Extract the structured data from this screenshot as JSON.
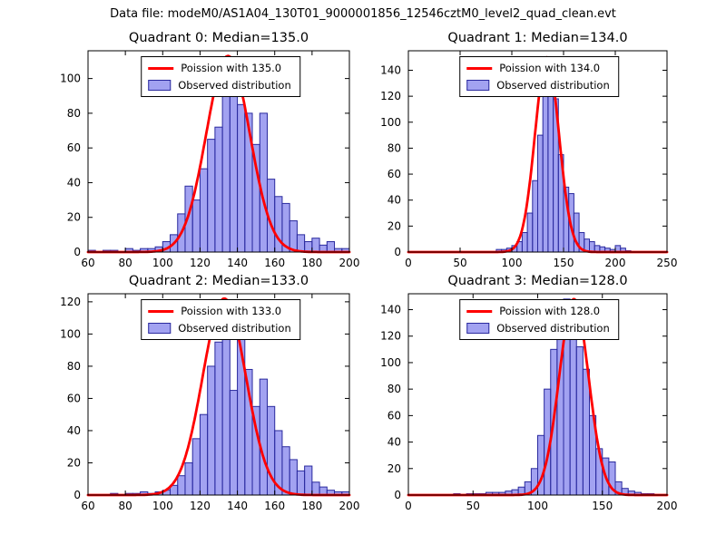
{
  "figure": {
    "title": "Data file: modeM0/AS1A04_130T01_9000001856_12546cztM0_level2_quad_clean.evt"
  },
  "colors": {
    "bar_fill": "rgba(85,85,230,0.55)",
    "bar_edge": "#2a2a9e",
    "curve": "#ff0000",
    "axis": "#000000",
    "background": "#ffffff"
  },
  "chart_data": [
    {
      "type": "bar",
      "title": "Quadrant 0: Median=135.0",
      "legend": [
        "Poission with 135.0",
        "Observed distribution"
      ],
      "xlim": [
        60,
        200
      ],
      "ylim": [
        0,
        116
      ],
      "xticks": [
        60,
        80,
        100,
        120,
        140,
        160,
        180,
        200
      ],
      "yticks": [
        0,
        20,
        40,
        60,
        80,
        100
      ],
      "bin_start": 60,
      "bin_width": 4,
      "counts": [
        1,
        0,
        1,
        1,
        0,
        2,
        1,
        2,
        2,
        3,
        6,
        10,
        22,
        38,
        30,
        48,
        65,
        72,
        110,
        95,
        85,
        80,
        62,
        80,
        42,
        32,
        28,
        18,
        10,
        6,
        8,
        4,
        6,
        2,
        2
      ],
      "poisson": {
        "lambda": 135.0,
        "peak": 113
      }
    },
    {
      "type": "bar",
      "title": "Quadrant 1: Median=134.0",
      "legend": [
        "Poission with 134.0",
        "Observed distribution"
      ],
      "xlim": [
        0,
        250
      ],
      "ylim": [
        0,
        155
      ],
      "xticks": [
        0,
        50,
        100,
        150,
        200,
        250
      ],
      "yticks": [
        0,
        20,
        40,
        60,
        80,
        100,
        120,
        140
      ],
      "bin_start": 85,
      "bin_width": 5,
      "counts": [
        2,
        2,
        3,
        5,
        8,
        15,
        30,
        55,
        90,
        140,
        150,
        118,
        75,
        50,
        45,
        30,
        15,
        10,
        8,
        5,
        4,
        3,
        2,
        5,
        3,
        1
      ],
      "poisson": {
        "lambda": 134.0,
        "peak": 150
      }
    },
    {
      "type": "bar",
      "title": "Quadrant 2: Median=133.0",
      "legend": [
        "Poission with 133.0",
        "Observed distribution"
      ],
      "xlim": [
        60,
        200
      ],
      "ylim": [
        0,
        125
      ],
      "xticks": [
        60,
        80,
        100,
        120,
        140,
        160,
        180,
        200
      ],
      "yticks": [
        0,
        20,
        40,
        60,
        80,
        100,
        120
      ],
      "bin_start": 72,
      "bin_width": 4,
      "counts": [
        1,
        0,
        1,
        1,
        2,
        1,
        2,
        3,
        6,
        12,
        20,
        35,
        50,
        80,
        95,
        120,
        65,
        100,
        78,
        55,
        72,
        55,
        40,
        30,
        22,
        15,
        18,
        8,
        5,
        3,
        2,
        2
      ],
      "poisson": {
        "lambda": 133.0,
        "peak": 122
      }
    },
    {
      "type": "bar",
      "title": "Quadrant 3: Median=128.0",
      "legend": [
        "Poission with 128.0",
        "Observed distribution"
      ],
      "xlim": [
        0,
        200
      ],
      "ylim": [
        0,
        152
      ],
      "xticks": [
        0,
        50,
        100,
        150,
        200
      ],
      "yticks": [
        0,
        20,
        40,
        60,
        80,
        100,
        120,
        140
      ],
      "bin_start": 35,
      "bin_width": 5,
      "counts": [
        1,
        0,
        1,
        1,
        1,
        2,
        2,
        2,
        3,
        4,
        6,
        10,
        20,
        45,
        80,
        110,
        130,
        148,
        135,
        112,
        95,
        60,
        35,
        28,
        25,
        10,
        5,
        3,
        2,
        1,
        1
      ],
      "poisson": {
        "lambda": 128.0,
        "peak": 148
      }
    }
  ]
}
